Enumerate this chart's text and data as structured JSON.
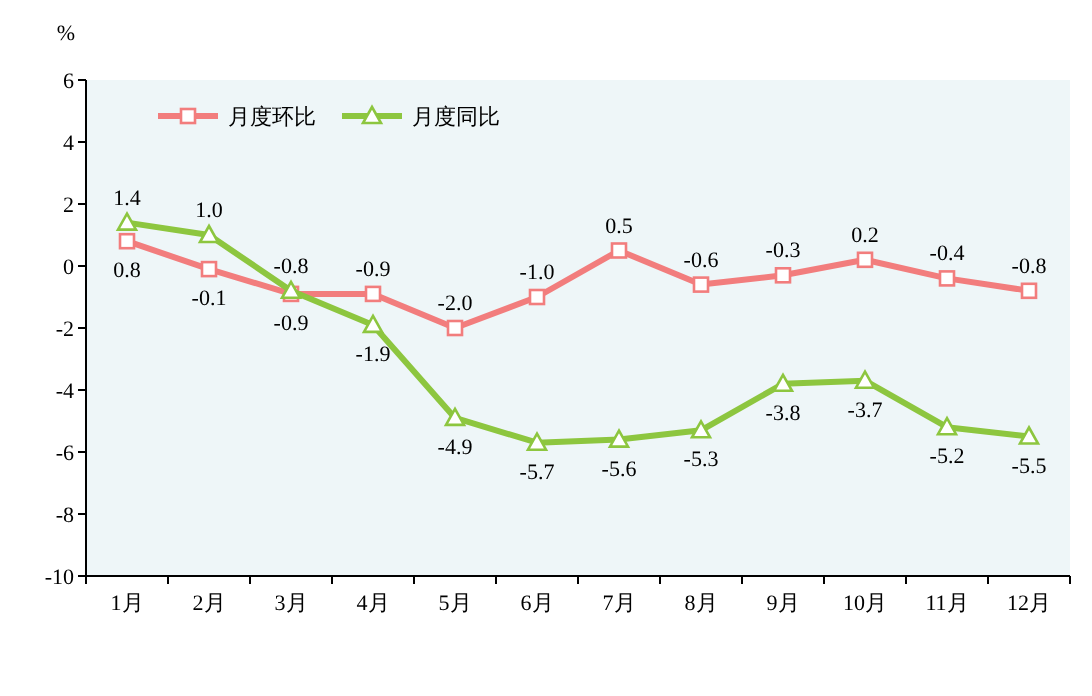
{
  "chart_data": {
    "type": "line",
    "ylabel": "%",
    "categories": [
      "1月",
      "2月",
      "3月",
      "4月",
      "5月",
      "6月",
      "7月",
      "8月",
      "9月",
      "10月",
      "11月",
      "12月"
    ],
    "ylim": [
      -10,
      6
    ],
    "yticks": [
      -10,
      -8,
      -6,
      -4,
      -2,
      0,
      2,
      4,
      6
    ],
    "grid": false,
    "legend": "top left",
    "line_style": "solid",
    "series": [
      {
        "name": "月度环比",
        "color": "#f27d7d",
        "marker": "square",
        "values": [
          0.8,
          -0.1,
          -0.9,
          -0.9,
          -2.0,
          -1.0,
          0.5,
          -0.6,
          -0.3,
          0.2,
          -0.4,
          -0.8
        ],
        "value_labels": [
          "0.8",
          "-0.1",
          "-0.9",
          "-0.9",
          "-2.0",
          "-1.0",
          "0.5",
          "-0.6",
          "-0.3",
          "0.2",
          "-0.4",
          "-0.8"
        ]
      },
      {
        "name": "月度同比",
        "color": "#8dc63f",
        "marker": "triangle",
        "values": [
          1.4,
          1.0,
          -0.8,
          -1.9,
          -4.9,
          -5.7,
          -5.6,
          -5.3,
          -3.8,
          -3.7,
          -5.2,
          -5.5
        ],
        "value_labels": [
          "1.4",
          "1.0",
          "-0.8",
          "-1.9",
          "-4.9",
          "-5.7",
          "-5.6",
          "-5.3",
          "-3.8",
          "-3.7",
          "-5.2",
          "-5.5"
        ]
      }
    ]
  }
}
